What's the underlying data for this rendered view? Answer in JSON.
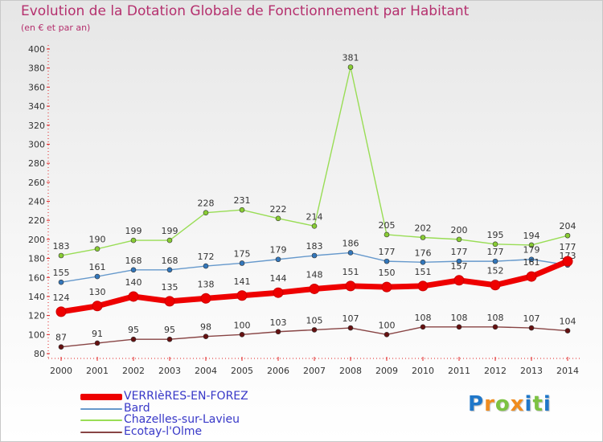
{
  "header": {
    "title": "Evolution de la Dotation Globale de Fonctionnement par Habitant",
    "subtitle": "(en € et par an)"
  },
  "chart_data": {
    "type": "line",
    "title": "Evolution de la Dotation Globale de Fonctionnement par Habitant",
    "subtitle": "(en € et par an)",
    "xlabel": "",
    "ylabel": "",
    "ylim": [
      80,
      400
    ],
    "yticks": [
      80,
      100,
      120,
      140,
      160,
      180,
      200,
      220,
      240,
      260,
      280,
      300,
      320,
      340,
      360,
      380,
      400
    ],
    "grid": false,
    "legend_position": "bottom-left",
    "x": [
      "2000",
      "2001",
      "2002",
      "2003",
      "2004",
      "2005",
      "2006",
      "2007",
      "2008",
      "2009",
      "2010",
      "2011",
      "2012",
      "2013",
      "2014"
    ],
    "series": [
      {
        "name": "Chazelles-sur-Lavieu",
        "color": "#99dd55",
        "point_color": "#88cc33",
        "values": [
          183,
          190,
          199,
          199,
          228,
          231,
          222,
          214,
          381,
          205,
          202,
          200,
          195,
          194,
          204
        ],
        "labels": [
          "183",
          "190",
          "199",
          "199",
          "228",
          "231",
          "222",
          "214",
          "381",
          "205",
          "202",
          "200",
          "195",
          "194",
          "204"
        ]
      },
      {
        "name": "Bard",
        "color": "#6699cc",
        "point_color": "#3377bb",
        "values": [
          155,
          161,
          168,
          168,
          172,
          175,
          179,
          183,
          186,
          177,
          176,
          177,
          177,
          179,
          173
        ],
        "labels": [
          "155",
          "161",
          "168",
          "168",
          "172",
          "175",
          "179",
          "183",
          "186",
          "177",
          "176",
          "177",
          "177",
          "179",
          "173"
        ]
      },
      {
        "name": "Ecotay-l'Olme",
        "color": "#884444",
        "point_color": "#661111",
        "values": [
          87,
          91,
          95,
          95,
          98,
          100,
          103,
          105,
          107,
          100,
          108,
          108,
          108,
          107,
          104
        ],
        "labels": [
          "87",
          "91",
          "95",
          "95",
          "98",
          "100",
          "103",
          "105",
          "107",
          "100",
          "108",
          "108",
          "108",
          "107",
          "104"
        ]
      },
      {
        "name": "VERRIèRES-EN-FOREZ",
        "color": "#ee0000",
        "point_color": "#ee0000",
        "values": [
          124,
          130,
          140,
          135,
          138,
          141,
          144,
          148,
          151,
          150,
          151,
          157,
          152,
          161,
          177
        ],
        "labels": [
          "124",
          "130",
          "140",
          "135",
          "138",
          "141",
          "144",
          "148",
          "151",
          "150",
          "151",
          "157",
          "152",
          "161",
          "177"
        ]
      }
    ]
  },
  "legend": {
    "items": [
      {
        "label": "VERRIèRES-EN-FOREZ",
        "color": "#ee0000"
      },
      {
        "label": "Bard",
        "color": "#6699cc"
      },
      {
        "label": "Chazelles-sur-Lavieu",
        "color": "#99dd55"
      },
      {
        "label": "Ecotay-l'Olme",
        "color": "#884444"
      }
    ]
  },
  "logo": {
    "letters": [
      {
        "ch": "P",
        "color": "#1f77c9"
      },
      {
        "ch": "r",
        "color": "#f08c1e"
      },
      {
        "ch": "o",
        "color": "#7cc242"
      },
      {
        "ch": "x",
        "color": "#f08c1e"
      },
      {
        "ch": "i",
        "color": "#1f77c9"
      },
      {
        "ch": "t",
        "color": "#7cc242"
      },
      {
        "ch": "i",
        "color": "#1f77c9"
      }
    ]
  }
}
